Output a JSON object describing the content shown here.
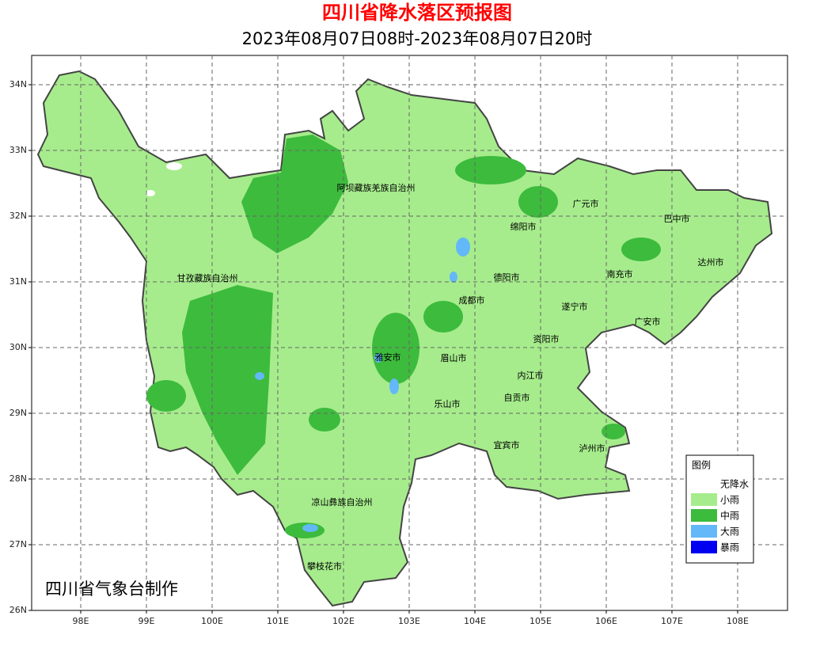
{
  "header": {
    "title": "四川省降水落区预报图",
    "subtitle": "2023年08月07日08时-2023年08月07日20时"
  },
  "map": {
    "lat_ticks": [
      {
        "value": 34,
        "label": "34N"
      },
      {
        "value": 33,
        "label": "33N"
      },
      {
        "value": 32,
        "label": "32N"
      },
      {
        "value": 31,
        "label": "31N"
      },
      {
        "value": 30,
        "label": "30N"
      },
      {
        "value": 29,
        "label": "29N"
      },
      {
        "value": 28,
        "label": "28N"
      },
      {
        "value": 27,
        "label": "27N"
      },
      {
        "value": 26,
        "label": "26N"
      }
    ],
    "lon_ticks": [
      {
        "value": 98,
        "label": "98E"
      },
      {
        "value": 99,
        "label": "99E"
      },
      {
        "value": 100,
        "label": "100E"
      },
      {
        "value": 101,
        "label": "101E"
      },
      {
        "value": 102,
        "label": "102E"
      },
      {
        "value": 103,
        "label": "103E"
      },
      {
        "value": 104,
        "label": "104E"
      },
      {
        "value": 105,
        "label": "105E"
      },
      {
        "value": 106,
        "label": "106E"
      },
      {
        "value": 107,
        "label": "107E"
      },
      {
        "value": 108,
        "label": "108E"
      }
    ],
    "grid": true,
    "regions": [
      "阿坝藏族羌族自治州",
      "甘孜藏族自治州",
      "广元市",
      "巴中市",
      "绵阳市",
      "达州市",
      "德阳市",
      "南充市",
      "成都市",
      "遂宁市",
      "广安市",
      "资阳市",
      "雅安市",
      "眉山市",
      "内江市",
      "自贡市",
      "乐山市",
      "宜宾市",
      "泸州市",
      "凉山彝族自治州",
      "攀枝花市"
    ],
    "credit": "四川省气象台制作"
  },
  "legend": {
    "title": "图例",
    "items": [
      {
        "label": "无降水",
        "color": "#ffffff"
      },
      {
        "label": "小雨",
        "color": "#a6ec8c"
      },
      {
        "label": "中雨",
        "color": "#3dbb3d"
      },
      {
        "label": "大雨",
        "color": "#62b8f8"
      },
      {
        "label": "暴雨",
        "color": "#0000f0"
      }
    ]
  }
}
